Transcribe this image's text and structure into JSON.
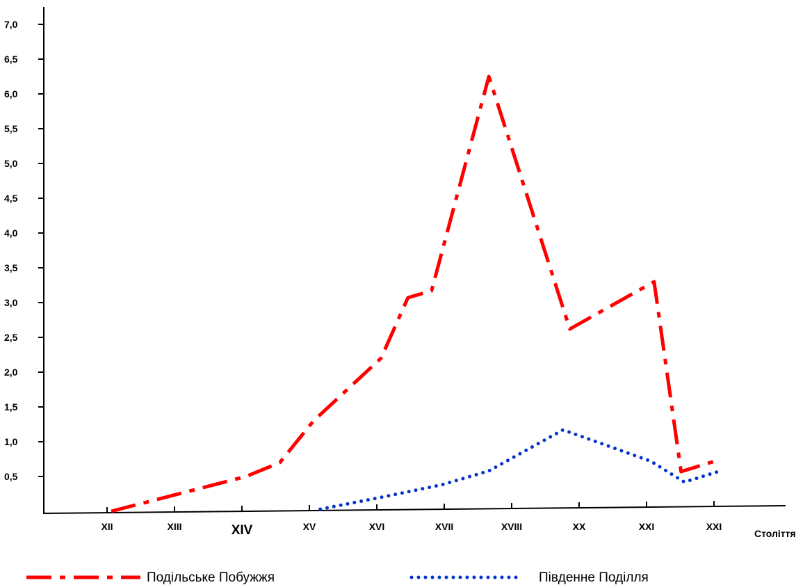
{
  "chart_data": {
    "type": "line",
    "xlabel": "Століття",
    "ylabel": "",
    "ylim": [
      0,
      7.0
    ],
    "y_ticks": [
      "0,5",
      "1,0",
      "1,5",
      "2,0",
      "2,5",
      "3,0",
      "3,5",
      "4,0",
      "4,5",
      "5,0",
      "5,5",
      "6,0",
      "6,5",
      "7,0"
    ],
    "categories": [
      "XII",
      "XIII",
      "XIV",
      "XV",
      "XVI",
      "XVII",
      "XVIII",
      "XX",
      "XXI",
      "XXI"
    ],
    "grid": false,
    "legend_position": "bottom",
    "series": [
      {
        "name": "Подільське Побужжя",
        "color": "#ff0000",
        "style": "dash-dot",
        "points": [
          {
            "x": 0,
            "y": 0.0
          },
          {
            "x": 1,
            "y": 0.25
          },
          {
            "x": 2,
            "y": 0.5
          },
          {
            "x": 2.5,
            "y": 0.7
          },
          {
            "x": 3,
            "y": 1.3
          },
          {
            "x": 4,
            "y": 2.2
          },
          {
            "x": 4.4,
            "y": 3.07
          },
          {
            "x": 4.75,
            "y": 3.17
          },
          {
            "x": 5.6,
            "y": 6.25
          },
          {
            "x": 6.8,
            "y": 2.62
          },
          {
            "x": 8.05,
            "y": 3.3
          },
          {
            "x": 8.45,
            "y": 0.57
          },
          {
            "x": 8.95,
            "y": 0.72
          }
        ]
      },
      {
        "name": "Південне Поділля",
        "color": "#0033cc",
        "style": "dotted",
        "points": [
          {
            "x": 3.1,
            "y": 0.03
          },
          {
            "x": 4.0,
            "y": 0.2
          },
          {
            "x": 4.9,
            "y": 0.38
          },
          {
            "x": 5.6,
            "y": 0.58
          },
          {
            "x": 6.7,
            "y": 1.17
          },
          {
            "x": 8.0,
            "y": 0.72
          },
          {
            "x": 8.5,
            "y": 0.42
          },
          {
            "x": 9.0,
            "y": 0.57
          }
        ]
      }
    ]
  }
}
